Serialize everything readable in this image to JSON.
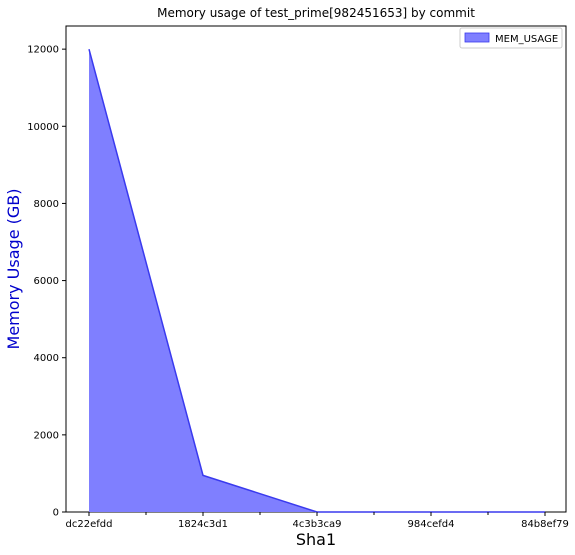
{
  "chart_data": {
    "type": "area",
    "title": "Memory usage of test_prime[982451653] by commit",
    "xlabel": "Sha1",
    "ylabel": "Memory Usage (GB)",
    "categories": [
      "dc22efdd",
      "1824c3d1",
      "4c3b3ca9",
      "984cefd4",
      "84b8ef79"
    ],
    "series": [
      {
        "name": "MEM_USAGE",
        "values": [
          12000,
          950,
          0,
          0,
          0
        ]
      }
    ],
    "ylim": [
      0,
      12600
    ],
    "yticks": [
      0,
      2000,
      4000,
      6000,
      8000,
      10000,
      12000
    ],
    "legend": "top-right",
    "grid": false
  },
  "colors": {
    "fill": "#7f7fff",
    "line": "#3a3aee",
    "ylabel": "#0000cc",
    "axis": "#000000"
  }
}
